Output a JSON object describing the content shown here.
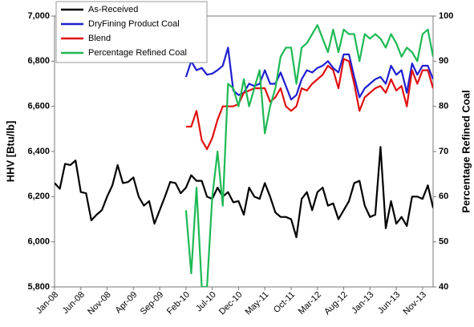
{
  "chart_data": {
    "type": "line",
    "ylabel": "HHV [Btu/lb]",
    "y2label": "Percentage Refined Coal",
    "categories": [
      "Jan-08",
      null,
      null,
      null,
      null,
      "Jun-08",
      null,
      null,
      null,
      null,
      "Nov-08",
      null,
      null,
      null,
      null,
      "Apr-09",
      null,
      null,
      null,
      null,
      "Sep-09",
      null,
      null,
      null,
      null,
      "Feb-10",
      null,
      null,
      null,
      null,
      "Jul-10",
      null,
      null,
      null,
      null,
      "Dec-10",
      null,
      null,
      null,
      null,
      "May-11",
      null,
      null,
      null,
      null,
      "Oct-11",
      null,
      null,
      null,
      null,
      "Mar-12",
      null,
      null,
      null,
      null,
      "Aug-12",
      null,
      null,
      null,
      null,
      "Jan-13",
      null,
      null,
      null,
      null,
      "Jun-13",
      null,
      null,
      null,
      null,
      "Nov-13",
      null,
      null
    ],
    "ylim": [
      5800,
      7000
    ],
    "yticks": [
      {
        "value": 5800,
        "label": "5,800"
      },
      {
        "value": 6000,
        "label": "6,000"
      },
      {
        "value": 6200,
        "label": "6,200"
      },
      {
        "value": 6400,
        "label": "6,400"
      },
      {
        "value": 6600,
        "label": "6,600"
      },
      {
        "value": 6800,
        "label": "6,800"
      },
      {
        "value": 7000,
        "label": "7,000"
      }
    ],
    "y2lim": [
      40,
      100
    ],
    "y2ticks": [
      40,
      50,
      60,
      70,
      80,
      90,
      100
    ],
    "legend": "upper left",
    "series": [
      {
        "name": "As-Received",
        "color": "#000000",
        "values": [
          6260,
          6235,
          6345,
          6340,
          6360,
          6220,
          6215,
          6095,
          6120,
          6140,
          6200,
          6250,
          6340,
          6260,
          6265,
          6285,
          6200,
          6160,
          6180,
          6080,
          6140,
          6200,
          6265,
          6260,
          6215,
          6240,
          6295,
          6270,
          6270,
          6200,
          6190,
          6240,
          6200,
          6220,
          6175,
          6180,
          6120,
          6240,
          6200,
          6190,
          6260,
          6200,
          6130,
          6110,
          6110,
          6100,
          6020,
          6190,
          6220,
          6140,
          6220,
          6240,
          6160,
          6170,
          6100,
          6140,
          6180,
          6260,
          6270,
          6160,
          6110,
          6120,
          6420,
          6060,
          6180,
          6080,
          6110,
          6070,
          6200,
          6200,
          6190,
          6250,
          6150
        ]
      },
      {
        "name": "DryFining Product Coal",
        "color": "#1f1fd0",
        "values": [
          null,
          null,
          null,
          null,
          null,
          null,
          null,
          null,
          null,
          null,
          null,
          null,
          null,
          null,
          null,
          null,
          null,
          null,
          null,
          null,
          null,
          null,
          null,
          null,
          null,
          6730,
          6800,
          6760,
          6770,
          6740,
          6745,
          6760,
          6780,
          6860,
          6670,
          6650,
          6660,
          6700,
          6690,
          6700,
          6760,
          6700,
          6700,
          6750,
          6690,
          6630,
          6650,
          6720,
          6760,
          6750,
          6770,
          6780,
          6800,
          6770,
          6750,
          6830,
          6830,
          6730,
          6640,
          6680,
          6700,
          6720,
          6730,
          6700,
          6780,
          6740,
          6760,
          6660,
          6790,
          6740,
          6780,
          6780,
          6720
        ]
      },
      {
        "name": "Blend",
        "color": "#e01010",
        "values": [
          null,
          null,
          null,
          null,
          null,
          null,
          null,
          null,
          null,
          null,
          null,
          null,
          null,
          null,
          null,
          null,
          null,
          null,
          null,
          null,
          null,
          null,
          null,
          null,
          null,
          6510,
          6510,
          6580,
          6450,
          6410,
          6460,
          6540,
          6600,
          6600,
          6600,
          6610,
          6660,
          6670,
          6680,
          6680,
          6680,
          6620,
          6640,
          6680,
          6600,
          6580,
          6600,
          6680,
          6670,
          6700,
          6720,
          6740,
          6780,
          6760,
          6680,
          6810,
          6800,
          6700,
          6580,
          6640,
          6660,
          6680,
          6690,
          6660,
          6720,
          6670,
          6690,
          6600,
          6760,
          6700,
          6760,
          6760,
          6680
        ]
      },
      {
        "name": "Percentage Refined Coal",
        "color": "#1db954",
        "axis": "y2",
        "values": [
          null,
          null,
          null,
          null,
          null,
          null,
          null,
          null,
          null,
          null,
          null,
          null,
          null,
          null,
          null,
          null,
          null,
          null,
          null,
          null,
          null,
          null,
          null,
          null,
          null,
          57,
          43,
          62,
          40,
          40,
          60,
          70,
          58,
          85,
          84,
          80,
          86,
          80,
          84,
          88,
          74,
          80,
          84,
          91,
          93,
          93,
          85,
          93,
          94,
          96,
          98,
          95,
          92,
          97,
          92,
          97,
          96,
          96,
          90,
          96,
          95,
          96,
          95,
          93,
          96,
          94,
          91,
          93,
          92,
          90,
          96,
          97,
          91
        ]
      }
    ]
  }
}
